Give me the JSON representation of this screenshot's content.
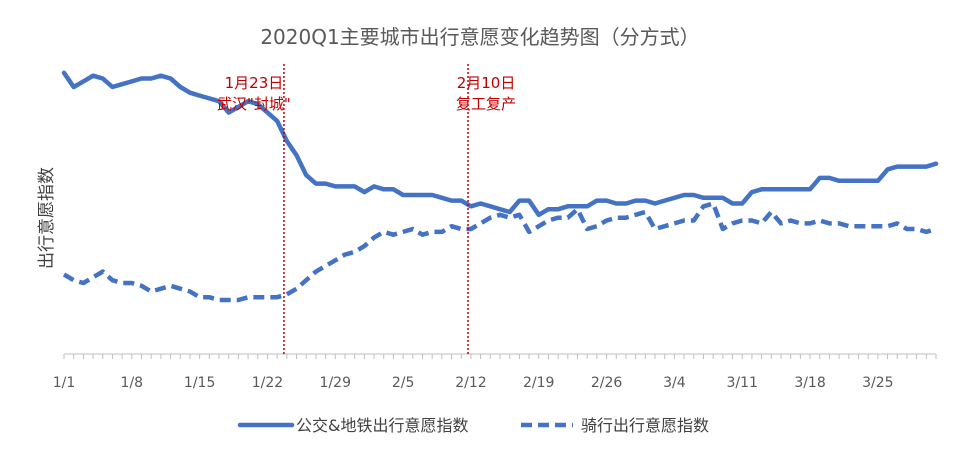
{
  "chart_data": {
    "type": "line",
    "title": "2020Q1主要城市出行意愿变化趋势图（分方式）",
    "xlabel": "",
    "ylabel": "出行意愿指数",
    "x": [
      1,
      2,
      3,
      4,
      5,
      6,
      7,
      8,
      9,
      10,
      11,
      12,
      13,
      14,
      15,
      16,
      17,
      18,
      19,
      20,
      21,
      22,
      23,
      24,
      25,
      26,
      27,
      28,
      29,
      30,
      31,
      32,
      33,
      34,
      35,
      36,
      37,
      38,
      39,
      40,
      41,
      42,
      43,
      44,
      45,
      46,
      47,
      48,
      49,
      50,
      51,
      52,
      53,
      54,
      55,
      56,
      57,
      58,
      59,
      60,
      61,
      62,
      63,
      64,
      65,
      66,
      67,
      68,
      69,
      70,
      71,
      72,
      73,
      74,
      75,
      76,
      77,
      78,
      79,
      80,
      81,
      82,
      83,
      84,
      85,
      86,
      87,
      88,
      89,
      90,
      91
    ],
    "xlim": [
      1,
      91
    ],
    "ylim": [
      0,
      100
    ],
    "x_ticks": [
      {
        "x": 1,
        "label": "1/1"
      },
      {
        "x": 8,
        "label": "1/8"
      },
      {
        "x": 15,
        "label": "1/15"
      },
      {
        "x": 22,
        "label": "1/22"
      },
      {
        "x": 29,
        "label": "1/29"
      },
      {
        "x": 36,
        "label": "2/5"
      },
      {
        "x": 43,
        "label": "2/12"
      },
      {
        "x": 50,
        "label": "2/19"
      },
      {
        "x": 57,
        "label": "2/26"
      },
      {
        "x": 64,
        "label": "3/4"
      },
      {
        "x": 71,
        "label": "3/11"
      },
      {
        "x": 78,
        "label": "3/18"
      },
      {
        "x": 85,
        "label": "3/25"
      }
    ],
    "series": [
      {
        "name": "公交&地铁出行意愿指数",
        "style": "solid",
        "color": "#4472c4",
        "values": [
          99,
          94,
          96,
          98,
          97,
          94,
          95,
          96,
          97,
          97,
          98,
          97,
          94,
          92,
          91,
          90,
          89,
          85,
          87,
          89,
          88,
          85,
          82,
          75,
          70,
          63,
          60,
          60,
          59,
          59,
          59,
          57,
          59,
          58,
          58,
          56,
          56,
          56,
          56,
          55,
          54,
          54,
          52,
          53,
          52,
          51,
          50,
          54,
          54,
          49,
          51,
          51,
          52,
          52,
          52,
          54,
          54,
          53,
          53,
          54,
          54,
          53,
          54,
          55,
          56,
          56,
          55,
          55,
          55,
          53,
          53,
          57,
          58,
          58,
          58,
          58,
          58,
          58,
          62,
          62,
          61,
          61,
          61,
          61,
          61,
          65,
          66,
          66,
          66,
          66,
          67
        ]
      },
      {
        "name": "骑行出行意愿指数",
        "style": "dashed",
        "color": "#4472c4",
        "values": [
          28,
          26,
          25,
          27,
          29,
          26,
          25,
          25,
          24,
          22,
          23,
          24,
          23,
          22,
          20,
          20,
          19,
          19,
          19,
          20,
          20,
          20,
          20,
          21,
          23,
          26,
          29,
          31,
          33,
          35,
          36,
          38,
          41,
          43,
          42,
          43,
          44,
          42,
          43,
          43,
          45,
          44,
          44,
          46,
          48,
          49,
          48,
          49,
          43,
          45,
          47,
          48,
          48,
          51,
          44,
          45,
          47,
          48,
          48,
          49,
          50,
          44,
          45,
          46,
          47,
          47,
          52,
          53,
          44,
          46,
          47,
          47,
          46,
          50,
          46,
          47,
          46,
          46,
          47,
          46,
          46,
          45,
          45,
          45,
          45,
          45,
          46,
          44,
          44,
          43,
          44
        ]
      }
    ],
    "annotations": [
      {
        "x": 23.7,
        "lines": [
          "1月23日",
          "武汉\"封城\""
        ]
      },
      {
        "x": 42.7,
        "lines": [
          "2月10日",
          "复工复产"
        ]
      }
    ],
    "legend": {
      "position": "bottom"
    }
  }
}
